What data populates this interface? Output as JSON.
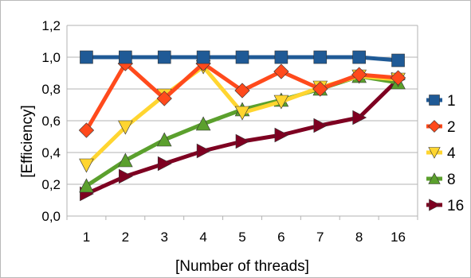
{
  "chart_data": {
    "type": "line",
    "xlabel": "[Number of threads]",
    "ylabel": "[Efficiency]",
    "categories": [
      "1",
      "2",
      "3",
      "4",
      "5",
      "6",
      "7",
      "8",
      "16"
    ],
    "ylim": [
      0.0,
      1.2
    ],
    "yticks": [
      "0,0",
      "0,2",
      "0,4",
      "0,6",
      "0,8",
      "1,0",
      "1,2"
    ],
    "grid": true,
    "legend_position": "right",
    "series": [
      {
        "name": "1",
        "color": "#1f5a96",
        "marker": "square",
        "values": [
          1.0,
          1.0,
          1.0,
          1.0,
          1.0,
          1.0,
          1.0,
          1.0,
          0.98
        ]
      },
      {
        "name": "2",
        "color": "#ff4a1c",
        "marker": "diamond",
        "values": [
          0.54,
          0.96,
          0.74,
          0.96,
          0.79,
          0.91,
          0.8,
          0.89,
          0.87
        ]
      },
      {
        "name": "4",
        "color": "#ffd530",
        "marker": "triangle-down",
        "values": [
          0.32,
          0.56,
          0.76,
          0.94,
          0.65,
          0.72,
          0.81,
          0.88,
          0.86
        ]
      },
      {
        "name": "8",
        "color": "#5ba02d",
        "marker": "triangle-up",
        "values": [
          0.19,
          0.35,
          0.48,
          0.58,
          0.67,
          0.73,
          0.8,
          0.88,
          0.84
        ]
      },
      {
        "name": "16",
        "color": "#7e0021",
        "marker": "triangle-right",
        "values": [
          0.14,
          0.25,
          0.33,
          0.41,
          0.47,
          0.51,
          0.57,
          0.62,
          0.86
        ]
      }
    ]
  }
}
